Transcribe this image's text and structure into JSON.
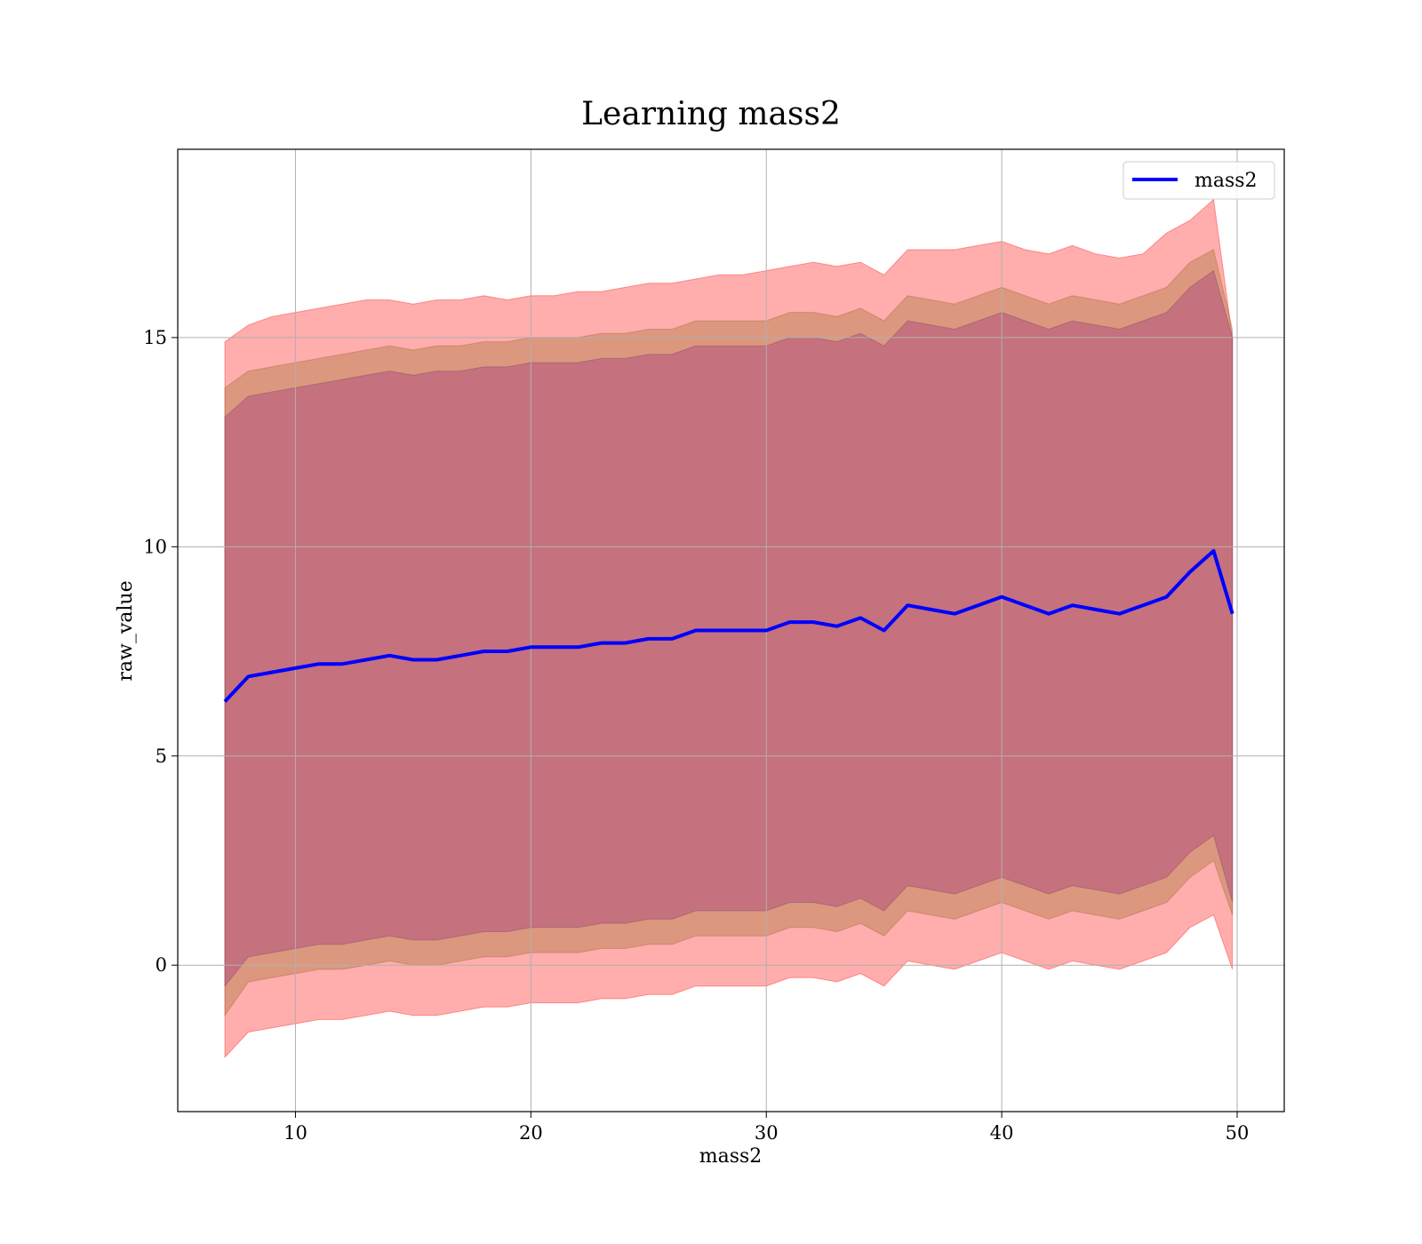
{
  "chart_data": {
    "type": "line",
    "title": "Learning mass2",
    "xlabel": "mass2",
    "ylabel": "raw_value",
    "xlim": [
      5,
      52
    ],
    "ylim": [
      -3.5,
      19.5
    ],
    "xticks": [
      10,
      20,
      30,
      40,
      50
    ],
    "yticks": [
      0,
      5,
      10,
      15
    ],
    "grid": true,
    "legend": {
      "placement": "top-right",
      "entries": [
        "mass2"
      ]
    },
    "colors": {
      "line": "#0000ff",
      "band": "#ff0000",
      "inner_band": "#800080",
      "mid_band": "#8b6914",
      "grid": "#b0b0b0"
    },
    "series": [
      {
        "name": "mass2",
        "x": [
          7.0,
          8,
          9,
          10,
          11,
          12,
          13,
          14,
          15,
          16,
          17,
          18,
          19,
          20,
          21,
          22,
          23,
          24,
          25,
          26,
          27,
          28,
          29,
          30,
          31,
          32,
          33,
          34,
          35,
          36,
          37,
          38,
          39,
          40,
          41,
          42,
          43,
          44,
          45,
          46,
          47,
          48,
          49,
          49.8
        ],
        "y": [
          6.3,
          6.9,
          7.0,
          7.1,
          7.2,
          7.2,
          7.3,
          7.4,
          7.3,
          7.3,
          7.4,
          7.5,
          7.5,
          7.6,
          7.6,
          7.6,
          7.7,
          7.7,
          7.8,
          7.8,
          8.0,
          8.0,
          8.0,
          8.0,
          8.2,
          8.2,
          8.1,
          8.3,
          8.0,
          8.6,
          8.5,
          8.4,
          8.6,
          8.8,
          8.6,
          8.4,
          8.6,
          8.5,
          8.4,
          8.6,
          8.8,
          9.4,
          9.9,
          8.4
        ]
      }
    ],
    "bands": [
      {
        "role": "outer",
        "upper": [
          14.9,
          15.3,
          15.5,
          15.6,
          15.7,
          15.8,
          15.9,
          15.9,
          15.8,
          15.9,
          15.9,
          16.0,
          15.9,
          16.0,
          16.0,
          16.1,
          16.1,
          16.2,
          16.3,
          16.3,
          16.4,
          16.5,
          16.5,
          16.6,
          16.7,
          16.8,
          16.7,
          16.8,
          16.5,
          17.1,
          17.1,
          17.1,
          17.2,
          17.3,
          17.1,
          17.0,
          17.2,
          17.0,
          16.9,
          17.0,
          17.5,
          17.8,
          18.3,
          15.0
        ],
        "lower": [
          -2.2,
          -1.6,
          -1.5,
          -1.4,
          -1.3,
          -1.3,
          -1.2,
          -1.1,
          -1.2,
          -1.2,
          -1.1,
          -1.0,
          -1.0,
          -0.9,
          -0.9,
          -0.9,
          -0.8,
          -0.8,
          -0.7,
          -0.7,
          -0.5,
          -0.5,
          -0.5,
          -0.5,
          -0.3,
          -0.3,
          -0.4,
          -0.2,
          -0.5,
          0.1,
          0.0,
          -0.1,
          0.1,
          0.3,
          0.1,
          -0.1,
          0.1,
          0.0,
          -0.1,
          0.1,
          0.3,
          0.9,
          1.2,
          -0.1
        ]
      },
      {
        "role": "middle",
        "upper": [
          13.8,
          14.2,
          14.3,
          14.4,
          14.5,
          14.6,
          14.7,
          14.8,
          14.7,
          14.8,
          14.8,
          14.9,
          14.9,
          15.0,
          15.0,
          15.0,
          15.1,
          15.1,
          15.2,
          15.2,
          15.4,
          15.4,
          15.4,
          15.4,
          15.6,
          15.6,
          15.5,
          15.7,
          15.4,
          16.0,
          15.9,
          15.8,
          16.0,
          16.2,
          16.0,
          15.8,
          16.0,
          15.9,
          15.8,
          16.0,
          16.2,
          16.8,
          17.1,
          15.2
        ],
        "lower": [
          -1.2,
          -0.4,
          -0.3,
          -0.2,
          -0.1,
          -0.1,
          0.0,
          0.1,
          0.0,
          0.0,
          0.1,
          0.2,
          0.2,
          0.3,
          0.3,
          0.3,
          0.4,
          0.4,
          0.5,
          0.5,
          0.7,
          0.7,
          0.7,
          0.7,
          0.9,
          0.9,
          0.8,
          1.0,
          0.7,
          1.3,
          1.2,
          1.1,
          1.3,
          1.5,
          1.3,
          1.1,
          1.3,
          1.2,
          1.1,
          1.3,
          1.5,
          2.1,
          2.5,
          1.2
        ]
      },
      {
        "role": "inner",
        "upper": [
          13.1,
          13.6,
          13.7,
          13.8,
          13.9,
          14.0,
          14.1,
          14.2,
          14.1,
          14.2,
          14.2,
          14.3,
          14.3,
          14.4,
          14.4,
          14.4,
          14.5,
          14.5,
          14.6,
          14.6,
          14.8,
          14.8,
          14.8,
          14.8,
          15.0,
          15.0,
          14.9,
          15.1,
          14.8,
          15.4,
          15.3,
          15.2,
          15.4,
          15.6,
          15.4,
          15.2,
          15.4,
          15.3,
          15.2,
          15.4,
          15.6,
          16.2,
          16.6,
          15.0
        ],
        "lower": [
          -0.5,
          0.2,
          0.3,
          0.4,
          0.5,
          0.5,
          0.6,
          0.7,
          0.6,
          0.6,
          0.7,
          0.8,
          0.8,
          0.9,
          0.9,
          0.9,
          1.0,
          1.0,
          1.1,
          1.1,
          1.3,
          1.3,
          1.3,
          1.3,
          1.5,
          1.5,
          1.4,
          1.6,
          1.3,
          1.9,
          1.8,
          1.7,
          1.9,
          2.1,
          1.9,
          1.7,
          1.9,
          1.8,
          1.7,
          1.9,
          2.1,
          2.7,
          3.1,
          1.5
        ]
      }
    ]
  }
}
